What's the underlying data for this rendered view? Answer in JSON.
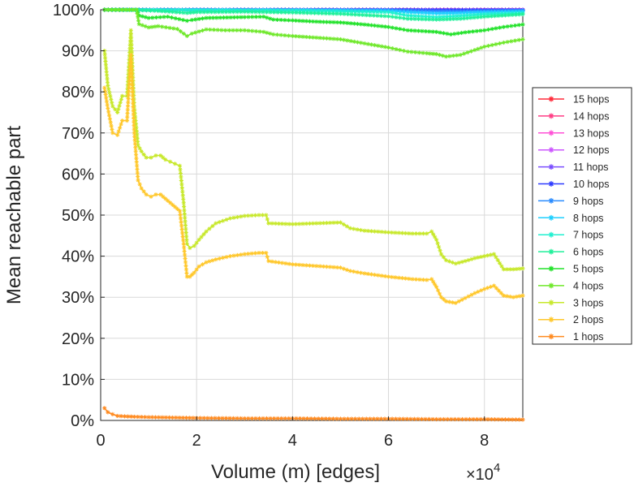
{
  "chart_data": {
    "type": "line",
    "xlabel": "Volume (m) [edges]",
    "ylabel": "Mean reachable part",
    "x_multiplier_label": "×10",
    "x_multiplier_exp": "4",
    "xlim": [
      0,
      88000
    ],
    "ylim": [
      0,
      100
    ],
    "x_ticks": [
      0,
      20000,
      40000,
      60000,
      80000
    ],
    "x_tick_labels": [
      "0",
      "2",
      "4",
      "6",
      "8"
    ],
    "y_ticks": [
      0,
      10,
      20,
      30,
      40,
      50,
      60,
      70,
      80,
      90,
      100
    ],
    "y_tick_labels": [
      "0%",
      "10%",
      "20%",
      "30%",
      "40%",
      "50%",
      "60%",
      "70%",
      "80%",
      "90%",
      "100%"
    ],
    "grid": true,
    "legend_position": "right",
    "series": [
      {
        "name": "15 hops",
        "color": "#ff2a3a",
        "x": [
          800,
          8000,
          20000,
          40000,
          60000,
          70000,
          80000,
          88000
        ],
        "y": [
          100,
          100,
          100,
          100,
          100,
          100,
          100,
          100
        ]
      },
      {
        "name": "14 hops",
        "color": "#ff3d85",
        "x": [
          800,
          8000,
          20000,
          40000,
          60000,
          70000,
          80000,
          88000
        ],
        "y": [
          100,
          100,
          100,
          100,
          100,
          100,
          100,
          100
        ]
      },
      {
        "name": "13 hops",
        "color": "#ff4fd6",
        "x": [
          800,
          8000,
          20000,
          40000,
          60000,
          70000,
          80000,
          88000
        ],
        "y": [
          100,
          100,
          100,
          100,
          100,
          100,
          100,
          100
        ]
      },
      {
        "name": "12 hops",
        "color": "#cc55ff",
        "x": [
          800,
          8000,
          20000,
          40000,
          60000,
          70000,
          80000,
          88000
        ],
        "y": [
          100,
          100,
          100,
          100,
          100,
          100,
          100,
          100
        ]
      },
      {
        "name": "11 hops",
        "color": "#7a4dff",
        "x": [
          800,
          8000,
          20000,
          40000,
          60000,
          70000,
          80000,
          88000
        ],
        "y": [
          100,
          100,
          100,
          100,
          100,
          100,
          100,
          100
        ]
      },
      {
        "name": "10 hops",
        "color": "#2e3bff",
        "x": [
          800,
          8000,
          20000,
          40000,
          60000,
          70000,
          80000,
          88000
        ],
        "y": [
          100,
          100,
          100,
          100,
          100,
          99.9,
          99.9,
          99.9
        ]
      },
      {
        "name": "9 hops",
        "color": "#2a8cff",
        "x": [
          800,
          8000,
          20000,
          40000,
          60000,
          64000,
          70000,
          75000,
          80000,
          88000
        ],
        "y": [
          100,
          100,
          100,
          100,
          99.9,
          99.8,
          99.6,
          99.6,
          99.7,
          99.8
        ]
      },
      {
        "name": "8 hops",
        "color": "#1fcfff",
        "x": [
          800,
          8000,
          20000,
          40000,
          60000,
          64000,
          70000,
          75000,
          80000,
          88000
        ],
        "y": [
          100,
          100,
          100,
          99.9,
          99.7,
          99.4,
          99.1,
          99.2,
          99.4,
          99.6
        ]
      },
      {
        "name": "7 hops",
        "color": "#1ff0d0",
        "x": [
          800,
          8000,
          20000,
          40000,
          60000,
          64000,
          70000,
          75000,
          80000,
          88000
        ],
        "y": [
          100,
          100,
          99.9,
          99.8,
          99.4,
          98.6,
          98.2,
          98.5,
          98.9,
          99.2
        ]
      },
      {
        "name": "6 hops",
        "color": "#1ff09a",
        "x": [
          800,
          8000,
          12000,
          18000,
          20000,
          30000,
          40000,
          50000,
          60000,
          64000,
          70000,
          75000,
          80000,
          88000
        ],
        "y": [
          100,
          99.9,
          99.7,
          99.2,
          99.4,
          99.5,
          99.3,
          99.0,
          98.4,
          97.8,
          97.6,
          97.8,
          98.3,
          98.9
        ]
      },
      {
        "name": "5 hops",
        "color": "#22e22a",
        "x": [
          800,
          7500,
          8000,
          10000,
          14000,
          18000,
          19000,
          22000,
          30000,
          34000,
          36000,
          40000,
          45000,
          50000,
          55000,
          60000,
          64000,
          70000,
          73000,
          76000,
          80000,
          84000,
          88000
        ],
        "y": [
          100,
          100,
          98.6,
          98.0,
          98.3,
          97.3,
          97.5,
          98.0,
          98.2,
          98.3,
          97.6,
          97.4,
          97.1,
          96.9,
          96.4,
          95.8,
          95.0,
          94.6,
          94.0,
          94.5,
          95.0,
          95.8,
          96.4
        ]
      },
      {
        "name": "4 hops",
        "color": "#6fe82a",
        "x": [
          800,
          7500,
          8000,
          10000,
          12000,
          16000,
          18000,
          19000,
          22000,
          26000,
          30000,
          34000,
          36000,
          40000,
          45000,
          50000,
          55000,
          60000,
          64000,
          68000,
          70000,
          72000,
          75000,
          78000,
          80000,
          84000,
          88000
        ],
        "y": [
          100,
          100,
          96.5,
          95.7,
          96.0,
          95.3,
          93.6,
          94.2,
          95.2,
          95.0,
          95.0,
          94.6,
          94.0,
          93.6,
          93.2,
          92.8,
          91.8,
          90.8,
          89.8,
          89.4,
          89.2,
          88.6,
          89.0,
          90.2,
          91.0,
          92.0,
          92.8
        ]
      },
      {
        "name": "3 hops",
        "color": "#c7e82a",
        "x": [
          800,
          1500,
          2500,
          3500,
          4500,
          5500,
          6300,
          7000,
          7800,
          8500,
          9500,
          10500,
          11500,
          12500,
          13500,
          14500,
          15500,
          16500,
          17300,
          18000,
          18600,
          19500,
          20500,
          22000,
          24000,
          27000,
          30000,
          33000,
          34500,
          35000,
          40000,
          45000,
          50000,
          52000,
          55000,
          60000,
          65000,
          68000,
          69000,
          70000,
          71000,
          72000,
          74000,
          76000,
          78000,
          80000,
          82000,
          84000,
          86000,
          88000
        ],
        "y": [
          90,
          81.5,
          76.5,
          75,
          79,
          79,
          95,
          76.5,
          67,
          65.5,
          64,
          64,
          64.5,
          64.5,
          63.5,
          63,
          62.5,
          62,
          53,
          43,
          42,
          42.5,
          44,
          46,
          48,
          49.2,
          49.8,
          50.0,
          50.0,
          48.0,
          47.8,
          48.0,
          48.2,
          46.8,
          46.2,
          45.8,
          45.5,
          45.5,
          46.0,
          44.0,
          40.5,
          39.0,
          38.2,
          38.8,
          39.5,
          40.0,
          40.5,
          36.8,
          36.8,
          37.0
        ]
      },
      {
        "name": "2 hops",
        "color": "#ffc72a",
        "x": [
          800,
          1500,
          2500,
          3500,
          4500,
          5500,
          6300,
          7000,
          7800,
          8500,
          9500,
          10500,
          11500,
          12500,
          13500,
          14500,
          15500,
          16500,
          17300,
          18000,
          18600,
          19500,
          20500,
          22000,
          24000,
          27000,
          30000,
          33000,
          34500,
          35000,
          40000,
          45000,
          50000,
          52000,
          55000,
          60000,
          65000,
          68000,
          69000,
          70000,
          71000,
          72000,
          74000,
          76000,
          78000,
          80000,
          82000,
          84000,
          86000,
          88000
        ],
        "y": [
          81,
          76,
          70,
          69.5,
          73,
          73,
          89,
          70,
          58.5,
          56.5,
          55,
          54.5,
          55,
          55,
          54,
          53,
          52,
          51,
          43,
          35,
          35,
          36,
          37.5,
          38.5,
          39.2,
          40,
          40.5,
          40.8,
          40.8,
          38.8,
          38.0,
          37.6,
          37.2,
          36.4,
          35.8,
          35.0,
          34.4,
          34.2,
          34.4,
          32.5,
          30.0,
          29.0,
          28.6,
          29.8,
          31.0,
          32.0,
          32.8,
          30.4,
          30.0,
          30.4
        ]
      },
      {
        "name": "1 hops",
        "color": "#ff8a1f",
        "x": [
          800,
          1500,
          2500,
          3500,
          5000,
          7000,
          10000,
          15000,
          20000,
          30000,
          40000,
          50000,
          60000,
          70000,
          80000,
          88000
        ],
        "y": [
          3.0,
          2.0,
          1.5,
          1.1,
          1.0,
          0.9,
          0.8,
          0.7,
          0.6,
          0.5,
          0.5,
          0.4,
          0.4,
          0.3,
          0.3,
          0.2
        ]
      }
    ]
  }
}
